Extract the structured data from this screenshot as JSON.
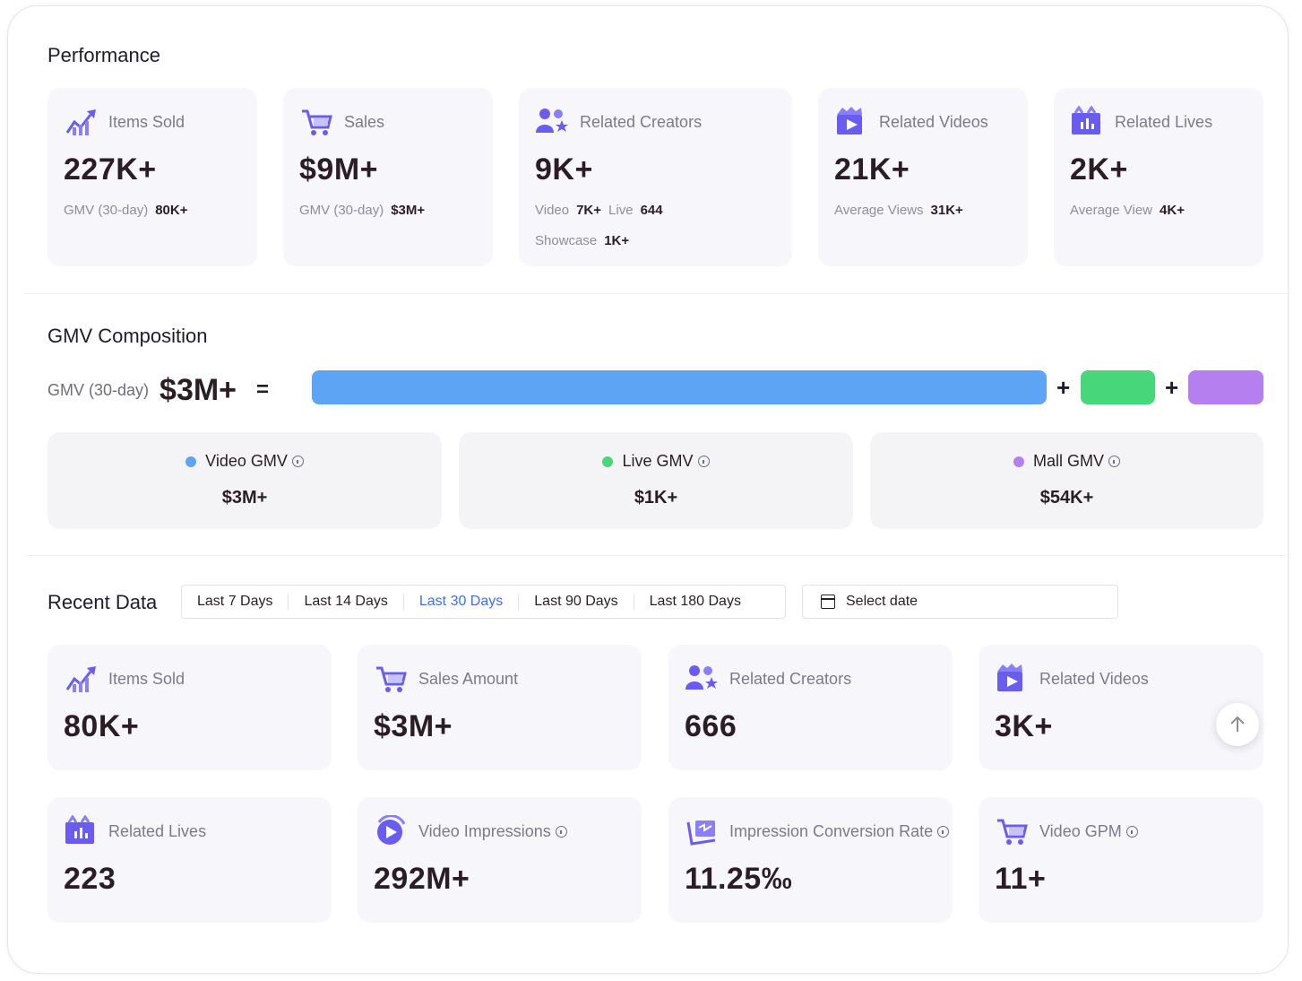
{
  "performance": {
    "title": "Performance",
    "cards": [
      {
        "label": "Items Sold",
        "value": "227K+",
        "sub": [
          {
            "k": "GMV (30-day)",
            "v": "80K+"
          }
        ]
      },
      {
        "label": "Sales",
        "value": "$9M+",
        "sub": [
          {
            "k": "GMV (30-day)",
            "v": "$3M+"
          }
        ]
      },
      {
        "label": "Related Creators",
        "value": "9K+",
        "sub": [
          {
            "k": "Video",
            "v": "7K+"
          },
          {
            "k": "Live",
            "v": "644"
          }
        ],
        "sub2": [
          {
            "k": "Showcase",
            "v": "1K+"
          }
        ]
      },
      {
        "label": "Related Videos",
        "value": "21K+",
        "sub": [
          {
            "k": "Average Views",
            "v": "31K+"
          }
        ]
      },
      {
        "label": "Related Lives",
        "value": "2K+",
        "sub": [
          {
            "k": "Average View",
            "v": "4K+"
          }
        ]
      }
    ]
  },
  "gmv": {
    "title": "GMV Composition",
    "label": "GMV (30-day)",
    "total": "$3M+",
    "equals": "=",
    "plus": "+",
    "colors": {
      "video": "#5ea4f5",
      "live": "#48d67a",
      "mall": "#b57ff0"
    },
    "parts": [
      {
        "name": "Video GMV",
        "value": "$3M+"
      },
      {
        "name": "Live GMV",
        "value": "$1K+"
      },
      {
        "name": "Mall GMV",
        "value": "$54K+"
      }
    ]
  },
  "recent": {
    "title": "Recent Data",
    "tabs": [
      "Last 7 Days",
      "Last 14 Days",
      "Last 30 Days",
      "Last 90 Days",
      "Last 180 Days"
    ],
    "active_tab": "Last 30 Days",
    "date_placeholder": "Select date",
    "cards": [
      {
        "label": "Items Sold",
        "value": "80K+"
      },
      {
        "label": "Sales Amount",
        "value": "$3M+"
      },
      {
        "label": "Related Creators",
        "value": "666"
      },
      {
        "label": "Related Videos",
        "value": "3K+"
      },
      {
        "label": "Related Lives",
        "value": "223"
      },
      {
        "label": "Video Impressions",
        "value": "292M+"
      },
      {
        "label": "Impression Conversion Rate",
        "value": "11.25‰"
      },
      {
        "label": "Video GPM",
        "value": "11+"
      }
    ]
  }
}
